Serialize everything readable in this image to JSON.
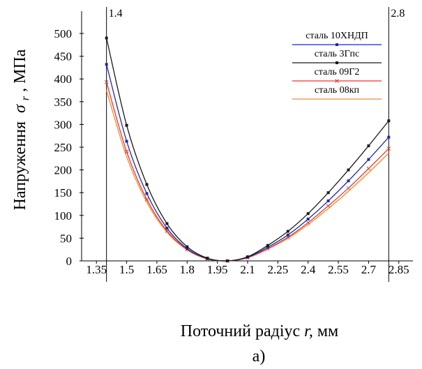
{
  "chart_data": {
    "type": "line",
    "ylabel_main": "Напруження",
    "ylabel_symbol": "σ",
    "ylabel_sub": "r",
    "ylabel_unit": ", МПа",
    "xlabel_main": "Поточний радіус ",
    "xlabel_var": "r,",
    "xlabel_unit": " мм",
    "caption": "а)",
    "xlim": [
      1.28,
      2.92
    ],
    "ylim": [
      0,
      500
    ],
    "x_ticks": [
      "1.35",
      "1.5",
      "1.65",
      "1.8",
      "1.95",
      "2.1",
      "2.25",
      "2.4",
      "2.55",
      "2.7",
      "2.85"
    ],
    "y_ticks": [
      "0",
      "50",
      "100",
      "150",
      "200",
      "250",
      "300",
      "350",
      "400",
      "450",
      "500"
    ],
    "vlines": [
      {
        "x": 1.4,
        "label": "1.4"
      },
      {
        "x": 2.8,
        "label": "2.8"
      }
    ],
    "grid": false,
    "legend_position": "top-right",
    "x": [
      1.4,
      1.5,
      1.6,
      1.7,
      1.8,
      1.9,
      2.0,
      2.1,
      2.2,
      2.3,
      2.4,
      2.5,
      2.6,
      2.7,
      2.8
    ],
    "series": [
      {
        "name": "сталь 10ХНДП",
        "color": "#1f2aa8",
        "marker": "square",
        "values": [
          432,
          263,
          148,
          72,
          27,
          5,
          0,
          8,
          30,
          57,
          92,
          132,
          176,
          223,
          272
        ]
      },
      {
        "name": "сталь 3Гпс",
        "color": "#1a1a1a",
        "marker": "square",
        "values": [
          490,
          298,
          168,
          82,
          31,
          6,
          0,
          9,
          34,
          65,
          104,
          150,
          200,
          253,
          308
        ]
      },
      {
        "name": "сталь 09Г2",
        "color": "#e8382f",
        "marker": "cross",
        "values": [
          393,
          240,
          135,
          66,
          25,
          5,
          0,
          7,
          27,
          52,
          84,
          121,
          160,
          203,
          247
        ]
      },
      {
        "name": "сталь 08кп",
        "color": "#f08a2c",
        "marker": "none",
        "values": [
          375,
          229,
          129,
          63,
          24,
          4,
          0,
          7,
          26,
          50,
          80,
          115,
          153,
          194,
          237
        ]
      }
    ]
  }
}
